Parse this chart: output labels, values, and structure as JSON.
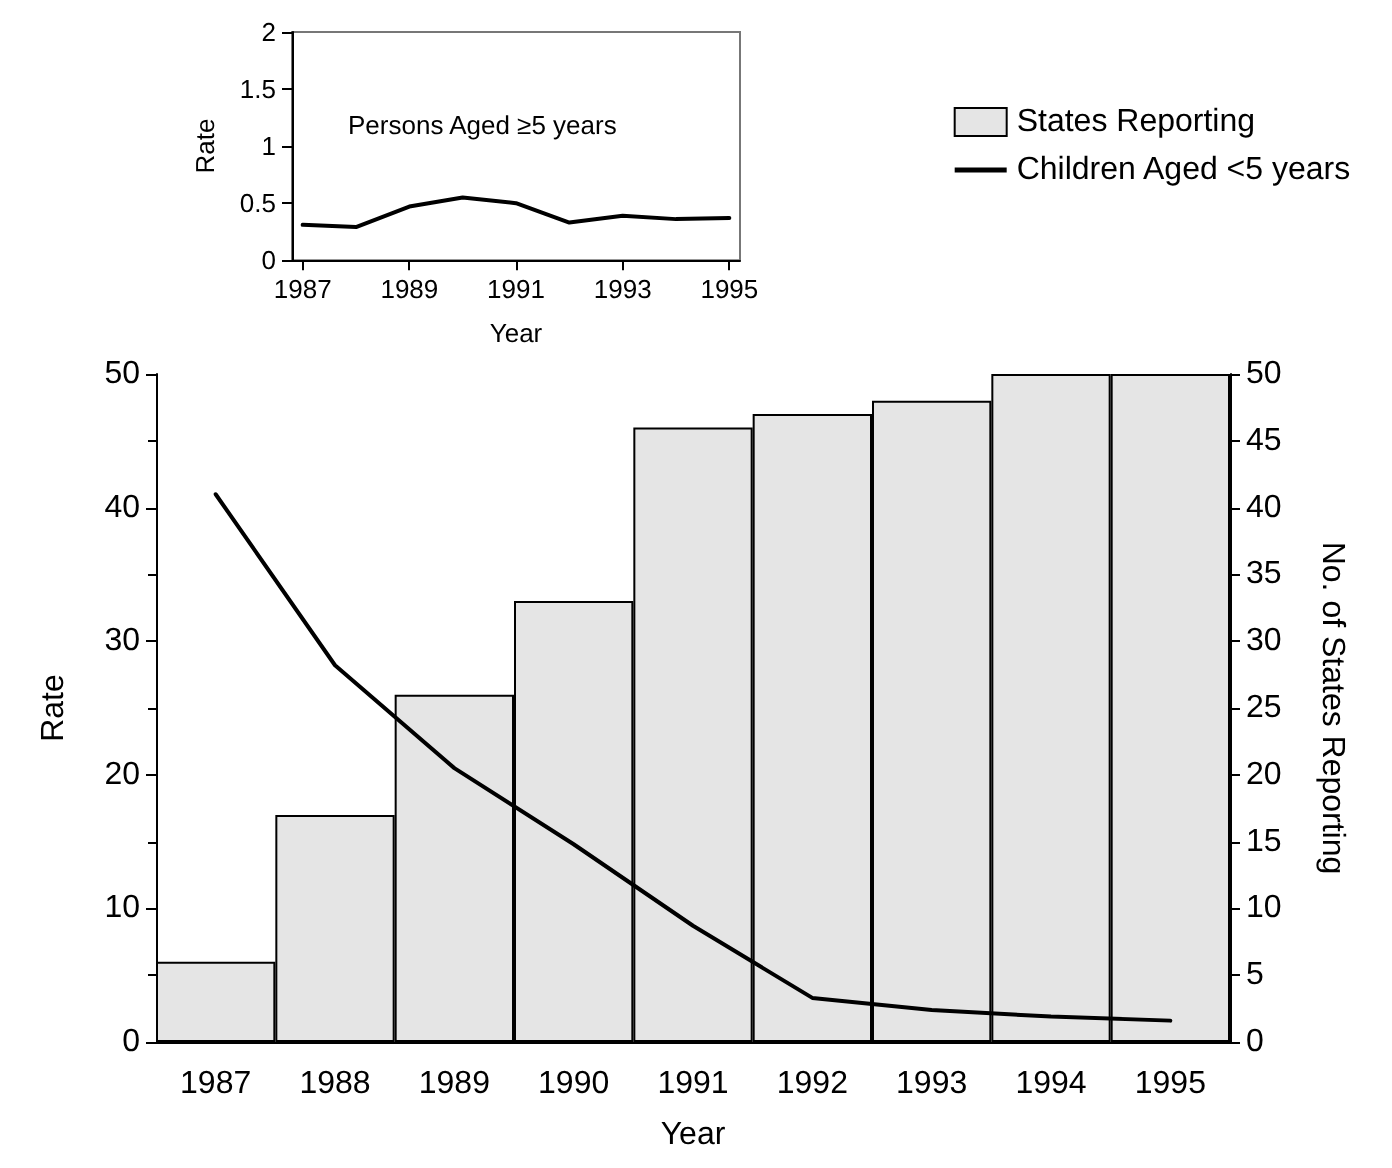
{
  "chart_data": [
    {
      "type": "line",
      "xlabel": "Year",
      "ylabel": "Rate",
      "x": [
        1987,
        1988,
        1989,
        1990,
        1991,
        1992,
        1993,
        1994,
        1995
      ],
      "series": [
        {
          "color": "#000000",
          "values": [
            0.31,
            0.29,
            0.47,
            0.55,
            0.5,
            0.33,
            0.39,
            0.36,
            0.37
          ]
        }
      ],
      "annotations": [
        "Persons Aged ≥5 years"
      ],
      "xlim": [
        1986.8,
        1995.2
      ],
      "xticks": [
        1987,
        1989,
        1991,
        1993,
        1995
      ],
      "ylim": [
        0,
        2
      ],
      "yticks": [
        0,
        0.5,
        1,
        1.5,
        2
      ],
      "marker": "none"
    },
    {
      "type": "bar",
      "xlabel": "Year",
      "ylabel": "Rate",
      "y2label": "No. of States Reporting",
      "categories": [
        "1987",
        "1988",
        "1989",
        "1990",
        "1991",
        "1992",
        "1993",
        "1994",
        "1995"
      ],
      "series": [
        {
          "name": "States Reporting",
          "type": "bar",
          "axis": "y2",
          "color": "#e5e5e5",
          "values": [
            6,
            17,
            26,
            33,
            46,
            47,
            48,
            50,
            50
          ]
        },
        {
          "name": "Children Aged <5 years",
          "type": "line",
          "color": "#000000",
          "values": [
            41,
            28.2,
            20.5,
            14.8,
            8.7,
            3.3,
            2.4,
            1.9,
            1.6
          ]
        }
      ],
      "ylim": [
        0,
        50
      ],
      "yticks": [
        0,
        10,
        20,
        30,
        40,
        50
      ],
      "y2lim": [
        0,
        50
      ],
      "y2ticks": [
        0,
        5,
        10,
        15,
        20,
        25,
        30,
        35,
        40,
        45,
        50
      ],
      "legend": "top right",
      "marker": "none"
    }
  ]
}
